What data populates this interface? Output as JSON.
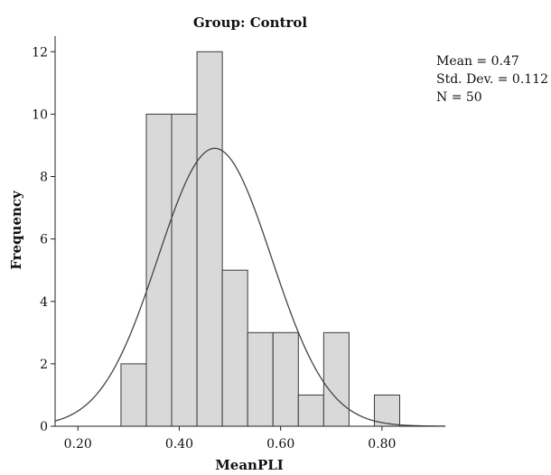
{
  "chart_data": {
    "type": "bar",
    "title": "Group: Control",
    "xlabel": "MeanPLI",
    "ylabel": "Frequency",
    "bin_width": 0.05,
    "bins": [
      {
        "start": 0.285,
        "end": 0.335,
        "count": 2
      },
      {
        "start": 0.335,
        "end": 0.385,
        "count": 10
      },
      {
        "start": 0.385,
        "end": 0.435,
        "count": 10
      },
      {
        "start": 0.435,
        "end": 0.485,
        "count": 12
      },
      {
        "start": 0.485,
        "end": 0.535,
        "count": 5
      },
      {
        "start": 0.535,
        "end": 0.585,
        "count": 3
      },
      {
        "start": 0.585,
        "end": 0.635,
        "count": 3
      },
      {
        "start": 0.635,
        "end": 0.685,
        "count": 1
      },
      {
        "start": 0.685,
        "end": 0.735,
        "count": 3
      },
      {
        "start": 0.735,
        "end": 0.785,
        "count": 0
      },
      {
        "start": 0.785,
        "end": 0.835,
        "count": 1
      }
    ],
    "xlim": [
      0.155,
      0.925
    ],
    "ylim": [
      0,
      12.5
    ],
    "x_ticks": [
      0.2,
      0.4,
      0.6,
      0.8
    ],
    "x_tick_labels": [
      "0.20",
      "0.40",
      "0.60",
      "0.80"
    ],
    "y_ticks": [
      0,
      2,
      4,
      6,
      8,
      10,
      12
    ],
    "y_tick_labels": [
      "0",
      "2",
      "4",
      "6",
      "8",
      "10",
      "12"
    ],
    "normal_curve": {
      "mean": 0.47,
      "sd": 0.112,
      "n": 50
    },
    "grid": false,
    "legend": "none",
    "stats": [
      "Mean = 0.47",
      "Std. Dev. = 0.112",
      "N = 50"
    ],
    "colors": {
      "bar_fill": "#d9d9d9",
      "bar_stroke": "#3a3a3a",
      "curve": "#444444",
      "axis": "#222222"
    }
  }
}
